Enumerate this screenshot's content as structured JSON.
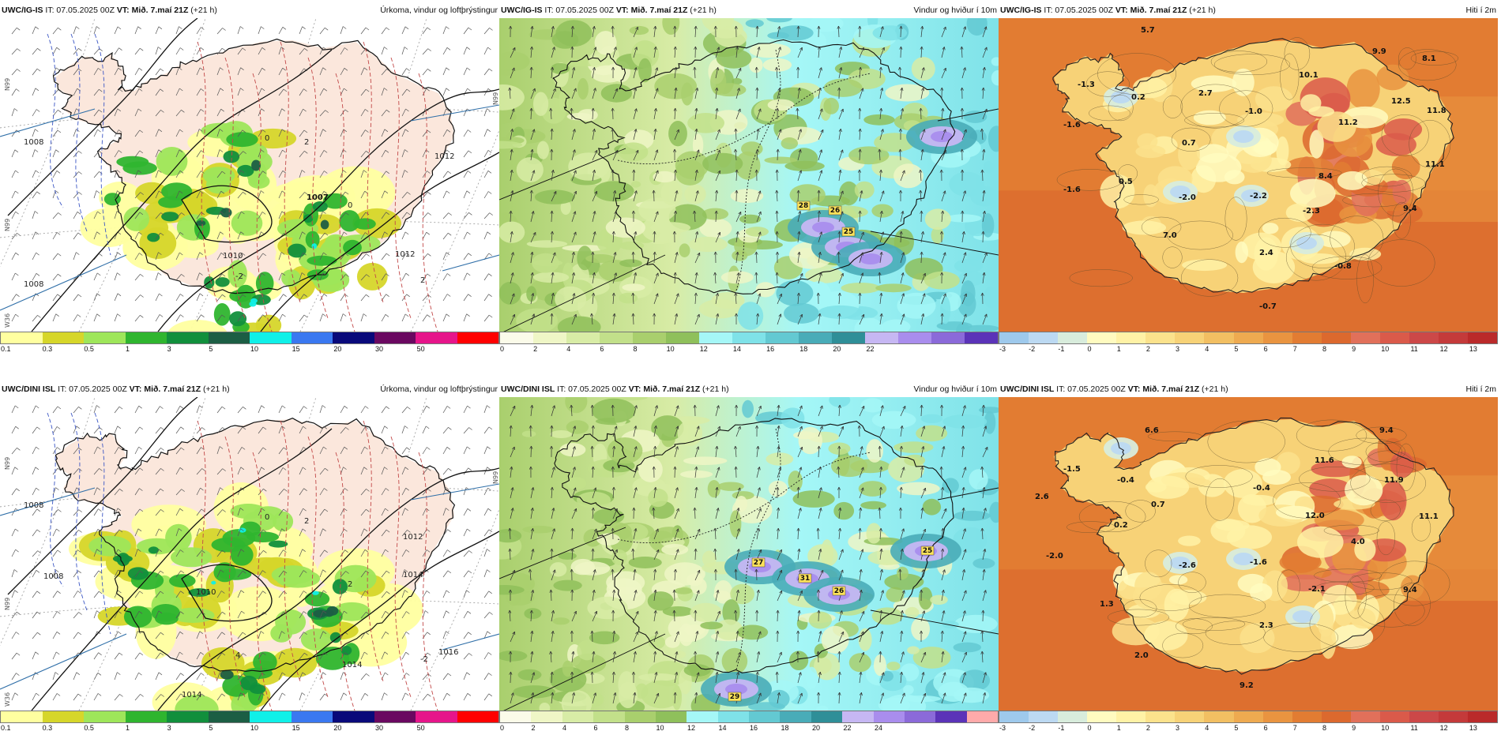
{
  "panels": [
    {
      "id": "p1",
      "source": "UWC/IG-IS",
      "it": "IT: 07.05.2025 00Z",
      "vt_label": "VT:",
      "vt": "Mið. 7.maí 21Z",
      "offset": "(+21 h)",
      "title": "Úrkoma, vindur og loftþrýstingur",
      "field": "precip",
      "pressure_labels": [
        "1007",
        "1010",
        "1008",
        "1008",
        "1012",
        "1012"
      ],
      "temp_labels": [
        "0",
        "2",
        "-2",
        "2",
        "0"
      ],
      "side_labels": [
        "N99",
        "N99",
        "N99",
        "W36"
      ],
      "colorbar": {
        "colors": [
          "#ffffa0",
          "#d6d62a",
          "#9ee65a",
          "#2fb52f",
          "#118f3c",
          "#1c5e44",
          "#10f0e8",
          "#3a78f0",
          "#09097a",
          "#6a0860",
          "#e6158a",
          "#ff0000"
        ],
        "ticks": [
          "0.1",
          "0.3",
          "0.5",
          "1",
          "3",
          "5",
          "10",
          "15",
          "20",
          "30",
          "50"
        ]
      }
    },
    {
      "id": "p2",
      "source": "UWC/IG-IS",
      "it": "IT: 07.05.2025 00Z",
      "vt_label": "VT:",
      "vt": "Mið. 7.maí 21Z",
      "offset": "(+21 h)",
      "title": "Vindur og hviður í 10m",
      "field": "wind",
      "gust_labels": [
        "28",
        "26",
        "25"
      ],
      "colorbar": {
        "colors": [
          "#fbfbe9",
          "#eff6c6",
          "#d8eca6",
          "#c2e08a",
          "#a9cf6d",
          "#8fc05b",
          "#a5f7f7",
          "#7fe2e8",
          "#63c9d2",
          "#49acb8",
          "#2f8f98",
          "#c6b7f3",
          "#a98ded",
          "#8b6ad9",
          "#5b33b8"
        ],
        "ticks": [
          "0",
          "2",
          "4",
          "6",
          "8",
          "10",
          "12",
          "14",
          "16",
          "18",
          "20",
          "22"
        ]
      }
    },
    {
      "id": "p3",
      "source": "UWC/IG-IS",
      "it": "IT: 07.05.2025 00Z",
      "vt_label": "VT:",
      "vt": "Mið. 7.maí 21Z",
      "offset": "(+21 h)",
      "title": "Hiti í 2m",
      "field": "temp",
      "values": [
        "5.7",
        "-1.3",
        "0.2",
        "2.7",
        "-1.0",
        "10.1",
        "9.9",
        "8.1",
        "-1.6",
        "0.7",
        "11.2",
        "12.5",
        "11.8",
        "0.5",
        "11.1",
        "-1.6",
        "-2.0",
        "-2.2",
        "8.4",
        "-2.3",
        "9.4",
        "7.0",
        "2.4",
        "-0.8",
        "-0.7"
      ],
      "colorbar": {
        "colors": [
          "#9ec9ec",
          "#bcd9f2",
          "#d8ecdc",
          "#fffbc0",
          "#fff2a6",
          "#fbe28c",
          "#f7d277",
          "#f2bf62",
          "#eeaa50",
          "#e99440",
          "#e27c32",
          "#dc692e",
          "#e1705a",
          "#da5a4a",
          "#cc4848",
          "#c43a3a",
          "#ba2a2a"
        ],
        "ticks": [
          "-3",
          "-2",
          "-1",
          "0",
          "1",
          "2",
          "3",
          "4",
          "5",
          "6",
          "7",
          "8",
          "9",
          "10",
          "11",
          "12",
          "13"
        ]
      }
    },
    {
      "id": "p4",
      "source": "UWC/DINI ISL",
      "it": "IT: 07.05.2025 00Z",
      "vt_label": "VT:",
      "vt": "Mið. 7.maí 21Z",
      "offset": "(+21 h)",
      "title": "Úrkoma, vindur og loftþrýstingur",
      "field": "precip",
      "pressure_labels": [
        "1008",
        "1010",
        "1008",
        "1012",
        "1014",
        "1016",
        "1014",
        "1014"
      ],
      "temp_labels": [
        "0",
        "2",
        "4",
        "-2",
        "2"
      ],
      "side_labels": [
        "N99",
        "N99",
        "N99",
        "W36"
      ],
      "colorbar": {
        "colors": [
          "#ffffa0",
          "#d6d62a",
          "#9ee65a",
          "#2fb52f",
          "#118f3c",
          "#1c5e44",
          "#10f0e8",
          "#3a78f0",
          "#09097a",
          "#6a0860",
          "#e6158a",
          "#ff0000"
        ],
        "ticks": [
          "0.1",
          "0.3",
          "0.5",
          "1",
          "3",
          "5",
          "10",
          "15",
          "20",
          "30",
          "50"
        ]
      }
    },
    {
      "id": "p5",
      "source": "UWC/DINI ISL",
      "it": "IT: 07.05.2025 00Z",
      "vt_label": "VT:",
      "vt": "Mið. 7.maí 21Z",
      "offset": "(+21 h)",
      "title": "Vindur og hviður í 10m",
      "field": "wind",
      "gust_labels": [
        "27",
        "31",
        "26",
        "25",
        "29"
      ],
      "colorbar": {
        "colors": [
          "#fbfbe9",
          "#eff6c6",
          "#d8eca6",
          "#c2e08a",
          "#a9cf6d",
          "#8fc05b",
          "#a5f7f7",
          "#7fe2e8",
          "#63c9d2",
          "#49acb8",
          "#2f8f98",
          "#c6b7f3",
          "#a98ded",
          "#8b6ad9",
          "#5b33b8",
          "#ffaaaa"
        ],
        "ticks": [
          "0",
          "2",
          "4",
          "6",
          "8",
          "10",
          "12",
          "14",
          "16",
          "18",
          "20",
          "22",
          "24"
        ]
      }
    },
    {
      "id": "p6",
      "source": "UWC/DINI ISL",
      "it": "IT: 07.05.2025 00Z",
      "vt_label": "VT:",
      "vt": "Mið. 7.maí 21Z",
      "offset": "(+21 h)",
      "title": "Hiti í 2m",
      "field": "temp",
      "values": [
        "6.6",
        "9.4",
        "-1.5",
        "-0.4",
        "-0.4",
        "11.6",
        "11.9",
        "2.6",
        "0.7",
        "12.0",
        "11.1",
        "0.2",
        "4.0",
        "-2.0",
        "-2.6",
        "-1.6",
        "-2.1",
        "9.4",
        "1.3",
        "2.3",
        "2.0",
        "9.2"
      ],
      "colorbar": {
        "colors": [
          "#9ec9ec",
          "#bcd9f2",
          "#d8ecdc",
          "#fffbc0",
          "#fff2a6",
          "#fbe28c",
          "#f7d277",
          "#f2bf62",
          "#eeaa50",
          "#e99440",
          "#e27c32",
          "#dc692e",
          "#e1705a",
          "#da5a4a",
          "#cc4848",
          "#c43a3a",
          "#ba2a2a"
        ],
        "ticks": [
          "-3",
          "-2",
          "-1",
          "0",
          "1",
          "2",
          "3",
          "4",
          "5",
          "6",
          "7",
          "8",
          "9",
          "10",
          "11",
          "12",
          "13"
        ]
      }
    }
  ]
}
